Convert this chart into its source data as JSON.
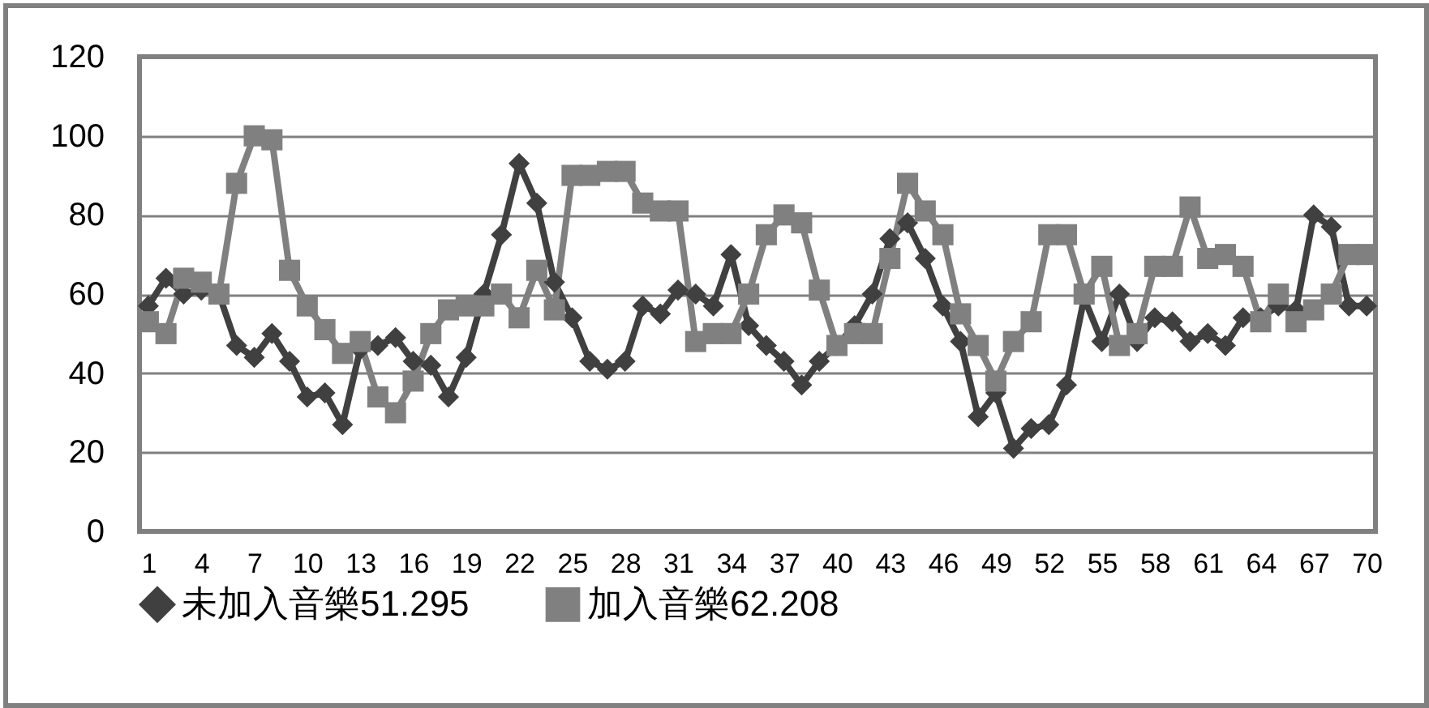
{
  "chart_data": {
    "type": "line",
    "x": [
      1,
      2,
      3,
      4,
      5,
      6,
      7,
      8,
      9,
      10,
      11,
      12,
      13,
      14,
      15,
      16,
      17,
      18,
      19,
      20,
      21,
      22,
      23,
      24,
      25,
      26,
      27,
      28,
      29,
      30,
      31,
      32,
      33,
      34,
      35,
      36,
      37,
      38,
      39,
      40,
      41,
      42,
      43,
      44,
      45,
      46,
      47,
      48,
      49,
      50,
      51,
      52,
      53,
      54,
      55,
      56,
      57,
      58,
      59,
      60,
      61,
      62,
      63,
      64,
      65,
      66,
      67,
      68,
      69,
      70
    ],
    "xlim": [
      0.5,
      70.5
    ],
    "xticks": [
      1,
      4,
      7,
      10,
      13,
      16,
      19,
      22,
      25,
      28,
      31,
      34,
      37,
      40,
      43,
      46,
      49,
      52,
      55,
      58,
      61,
      64,
      67,
      70
    ],
    "ylim": [
      0,
      120
    ],
    "yticks": [
      0,
      20,
      40,
      60,
      80,
      100,
      120
    ],
    "grid": "y",
    "legend": "bottom",
    "series": [
      {
        "name": "未加入音樂51.295",
        "color": "#404040",
        "marker": "diamond",
        "values": [
          57,
          64,
          60,
          61,
          60,
          47,
          44,
          50,
          43,
          34,
          35,
          27,
          46,
          47,
          49,
          43,
          42,
          34,
          44,
          60,
          75,
          93,
          83,
          63,
          54,
          43,
          41,
          43,
          57,
          55,
          61,
          60,
          57,
          70,
          52,
          47,
          43,
          37,
          43,
          47,
          52,
          60,
          74,
          78,
          69,
          57,
          48,
          29,
          35,
          21,
          26,
          27,
          37,
          59,
          48,
          60,
          48,
          54,
          53,
          48,
          50,
          47,
          54,
          54,
          57,
          56,
          80,
          77,
          57,
          57
        ]
      },
      {
        "name": "加入音樂62.208",
        "color": "#808080",
        "marker": "square",
        "values": [
          53,
          50,
          64,
          63,
          60,
          88,
          100,
          99,
          66,
          57,
          51,
          45,
          48,
          34,
          30,
          38,
          50,
          56,
          57,
          57,
          60,
          54,
          66,
          56,
          90,
          90,
          91,
          91,
          83,
          81,
          81,
          48,
          50,
          50,
          60,
          75,
          80,
          78,
          61,
          47,
          50,
          50,
          69,
          88,
          81,
          75,
          55,
          47,
          38,
          48,
          53,
          75,
          75,
          60,
          67,
          47,
          50,
          67,
          67,
          82,
          69,
          70,
          67,
          53,
          60,
          53,
          56,
          60,
          70,
          70
        ]
      }
    ]
  }
}
